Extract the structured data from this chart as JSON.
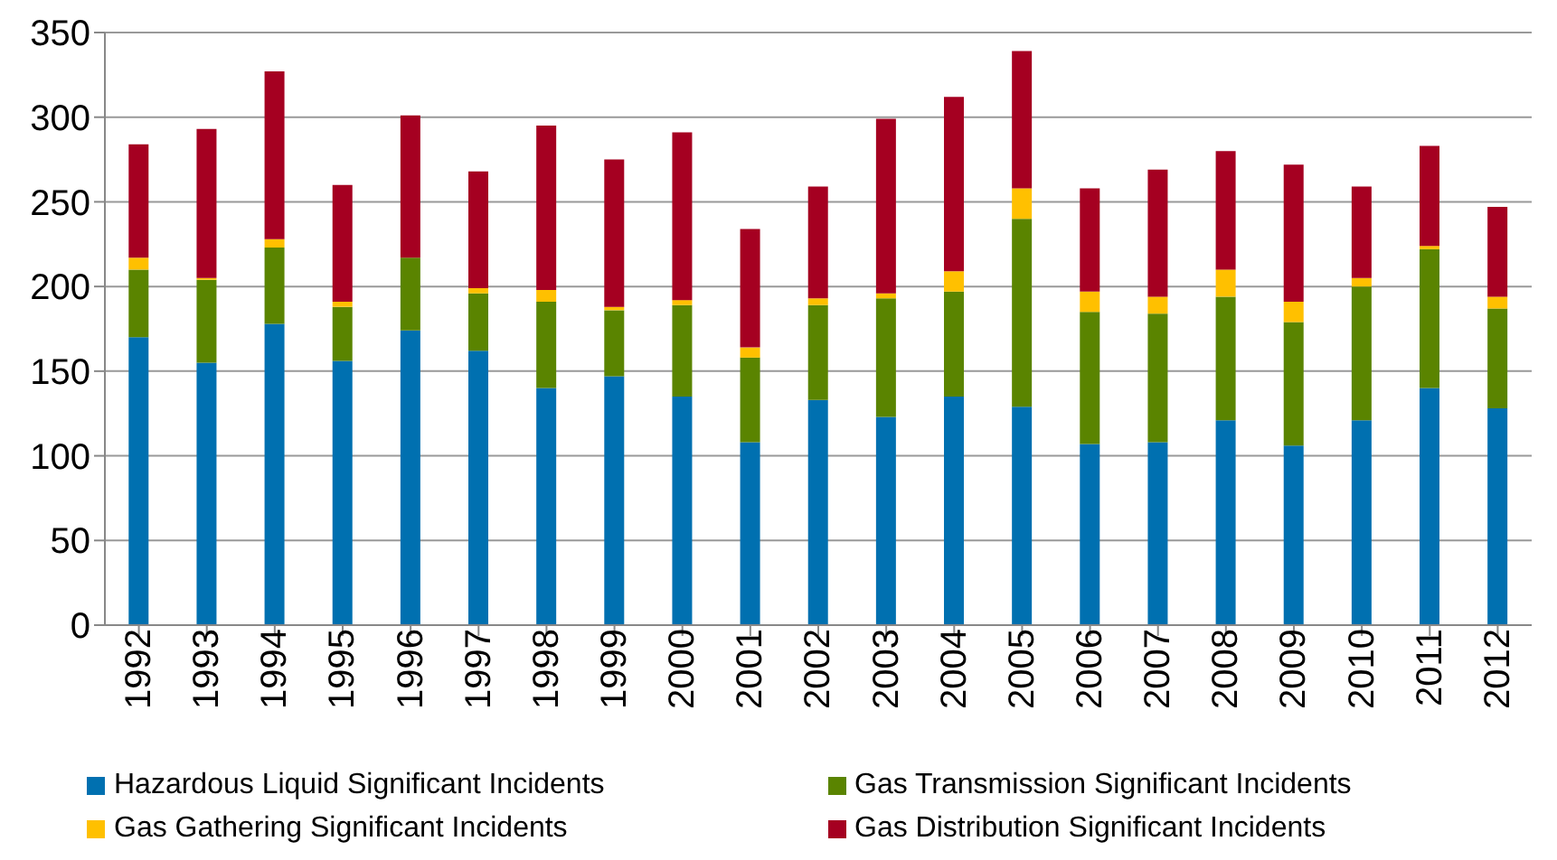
{
  "chart_data": {
    "type": "bar",
    "stacked": true,
    "categories": [
      "1992",
      "1993",
      "1994",
      "1995",
      "1996",
      "1997",
      "1998",
      "1999",
      "2000",
      "2001",
      "2002",
      "2003",
      "2004",
      "2005",
      "2006",
      "2007",
      "2008",
      "2009",
      "2010",
      "2011",
      "2012"
    ],
    "series": [
      {
        "name": "Hazardous Liquid Significant Incidents",
        "color": "#0070b0",
        "values": [
          170,
          155,
          178,
          156,
          174,
          162,
          140,
          147,
          135,
          108,
          133,
          123,
          135,
          129,
          107,
          108,
          121,
          106,
          121,
          140,
          128
        ]
      },
      {
        "name": "Gas Transmission Significant Incidents",
        "color": "#5a8400",
        "values": [
          40,
          49,
          45,
          32,
          43,
          34,
          51,
          39,
          54,
          50,
          56,
          70,
          62,
          111,
          78,
          76,
          73,
          73,
          79,
          82,
          59
        ]
      },
      {
        "name": "Gas Gathering Significant Incidents",
        "color": "#ffc000",
        "values": [
          7,
          1,
          5,
          3,
          0,
          3,
          7,
          2,
          3,
          6,
          4,
          3,
          12,
          18,
          12,
          10,
          16,
          12,
          5,
          2,
          7
        ]
      },
      {
        "name": "Gas Distribution Significant Incidents",
        "color": "#a50021",
        "values": [
          67,
          88,
          99,
          69,
          84,
          69,
          97,
          87,
          99,
          70,
          66,
          103,
          103,
          81,
          61,
          75,
          70,
          81,
          54,
          59,
          53
        ]
      }
    ],
    "ylim": [
      0,
      350
    ],
    "yticks": [
      0,
      50,
      100,
      150,
      200,
      250,
      300,
      350
    ],
    "grid": "y",
    "legend": "bottom"
  }
}
